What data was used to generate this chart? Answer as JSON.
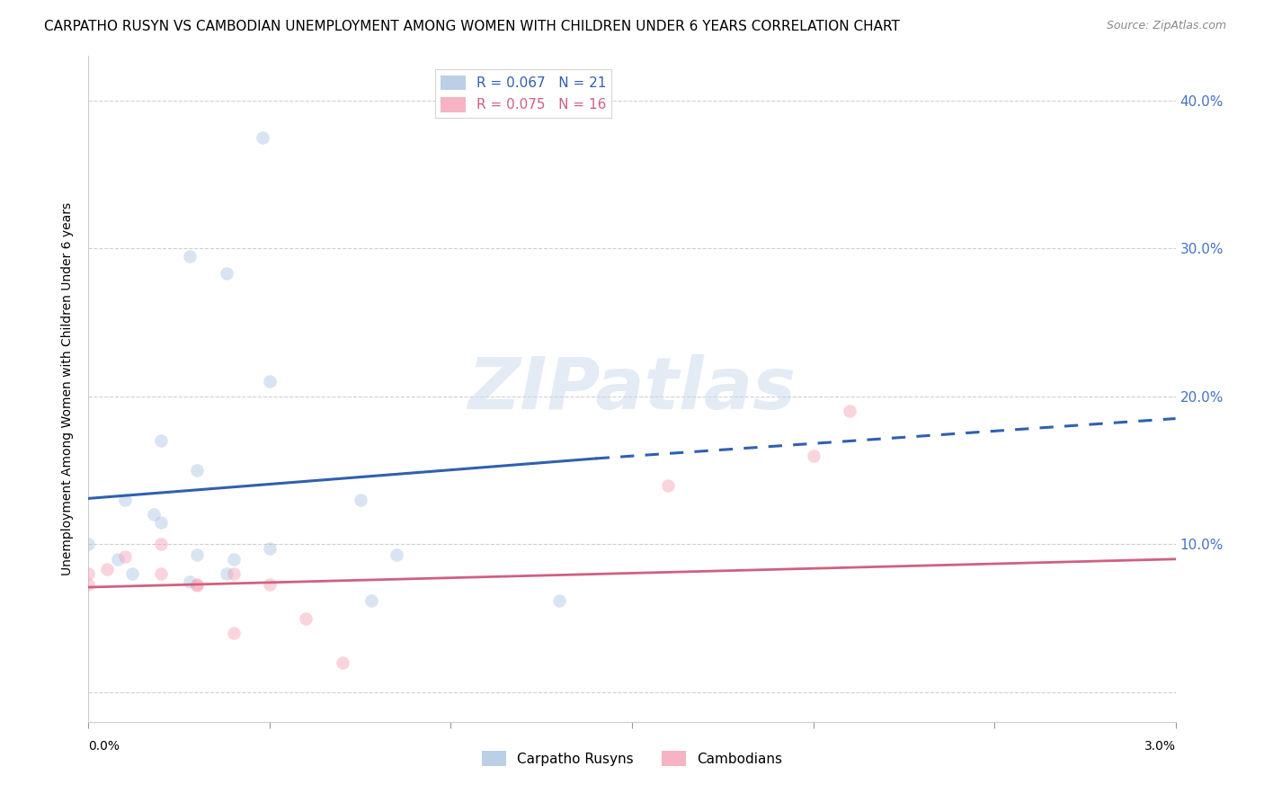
{
  "title": "CARPATHO RUSYN VS CAMBODIAN UNEMPLOYMENT AMONG WOMEN WITH CHILDREN UNDER 6 YEARS CORRELATION CHART",
  "source": "Source: ZipAtlas.com",
  "ylabel": "Unemployment Among Women with Children Under 6 years",
  "y_ticks": [
    0.0,
    0.1,
    0.2,
    0.3,
    0.4
  ],
  "y_tick_labels_right": [
    "",
    "10.0%",
    "20.0%",
    "30.0%",
    "40.0%"
  ],
  "xlim": [
    0.0,
    0.03
  ],
  "ylim": [
    -0.02,
    0.43
  ],
  "blue_scatter_x": [
    0.0028,
    0.0038,
    0.0048,
    0.0028,
    0.0038,
    0.0,
    0.001,
    0.0008,
    0.0012,
    0.002,
    0.0018,
    0.002,
    0.003,
    0.003,
    0.004,
    0.005,
    0.005,
    0.0075,
    0.0078,
    0.013,
    0.0085
  ],
  "blue_scatter_y": [
    0.075,
    0.08,
    0.375,
    0.295,
    0.283,
    0.1,
    0.13,
    0.09,
    0.08,
    0.17,
    0.12,
    0.115,
    0.15,
    0.093,
    0.09,
    0.21,
    0.097,
    0.13,
    0.062,
    0.062,
    0.093
  ],
  "pink_scatter_x": [
    0.0,
    0.0,
    0.0005,
    0.001,
    0.002,
    0.002,
    0.003,
    0.003,
    0.004,
    0.004,
    0.005,
    0.006,
    0.007,
    0.016,
    0.02,
    0.021
  ],
  "pink_scatter_y": [
    0.08,
    0.073,
    0.083,
    0.092,
    0.1,
    0.08,
    0.072,
    0.073,
    0.04,
    0.08,
    0.073,
    0.05,
    0.02,
    0.14,
    0.16,
    0.19
  ],
  "blue_solid_line_x": [
    0.0,
    0.014
  ],
  "blue_solid_line_y": [
    0.131,
    0.158
  ],
  "blue_dashed_line_x": [
    0.014,
    0.03
  ],
  "blue_dashed_line_y": [
    0.158,
    0.185
  ],
  "pink_line_x": [
    0.0,
    0.03
  ],
  "pink_line_y": [
    0.071,
    0.09
  ],
  "watermark_text": "ZIPatlas",
  "scatter_size": 110,
  "scatter_alpha": 0.45,
  "blue_color": "#aac4e2",
  "pink_color": "#f4a0b5",
  "blue_line_color": "#3060b0",
  "pink_line_color": "#d06080",
  "grid_color": "#d0d0d0",
  "background_color": "#ffffff",
  "title_fontsize": 11,
  "axis_label_fontsize": 10,
  "right_tick_color": "#4472c4",
  "legend_label_blue": "R = 0.067   N = 21",
  "legend_label_pink": "R = 0.075   N = 16",
  "bottom_legend_label_blue": "Carpatho Rusyns",
  "bottom_legend_label_pink": "Cambodians",
  "x_tick_positions": [
    0.0,
    0.005,
    0.01,
    0.015,
    0.02,
    0.025,
    0.03
  ]
}
